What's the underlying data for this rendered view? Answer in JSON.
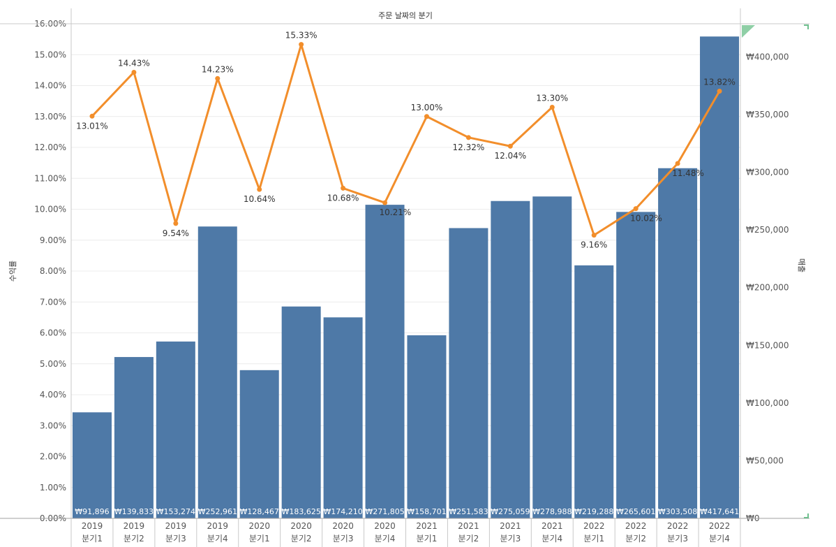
{
  "chart_data": {
    "type": "bar+line",
    "title": "주문 날짜의 분기",
    "y_left_label": "수익률",
    "y_right_label": "매출",
    "y_left_ticks": [
      "0.00%",
      "1.00%",
      "2.00%",
      "3.00%",
      "4.00%",
      "5.00%",
      "6.00%",
      "7.00%",
      "8.00%",
      "9.00%",
      "10.00%",
      "11.00%",
      "12.00%",
      "13.00%",
      "14.00%",
      "15.00%",
      "16.00%"
    ],
    "y_right_ticks": [
      "₩0",
      "₩50,000",
      "₩100,000",
      "₩150,000",
      "₩200,000",
      "₩250,000",
      "₩300,000",
      "₩350,000",
      "₩400,000"
    ],
    "ylim_left": [
      0,
      16
    ],
    "ylim_right": [
      0,
      428700
    ],
    "categories": [
      {
        "year": "2019",
        "quarter": "분기1"
      },
      {
        "year": "2019",
        "quarter": "분기2"
      },
      {
        "year": "2019",
        "quarter": "분기3"
      },
      {
        "year": "2019",
        "quarter": "분기4"
      },
      {
        "year": "2020",
        "quarter": "분기1"
      },
      {
        "year": "2020",
        "quarter": "분기2"
      },
      {
        "year": "2020",
        "quarter": "분기3"
      },
      {
        "year": "2020",
        "quarter": "분기4"
      },
      {
        "year": "2021",
        "quarter": "분기1"
      },
      {
        "year": "2021",
        "quarter": "분기2"
      },
      {
        "year": "2021",
        "quarter": "분기3"
      },
      {
        "year": "2021",
        "quarter": "분기4"
      },
      {
        "year": "2022",
        "quarter": "분기1"
      },
      {
        "year": "2022",
        "quarter": "분기2"
      },
      {
        "year": "2022",
        "quarter": "분기3"
      },
      {
        "year": "2022",
        "quarter": "분기4"
      }
    ],
    "sales": [
      91896,
      139833,
      153274,
      252961,
      128467,
      183625,
      174210,
      271805,
      158701,
      251583,
      275059,
      278988,
      219288,
      265601,
      303508,
      417641
    ],
    "sales_labels": [
      "₩91,896",
      "₩139,833",
      "₩153,274",
      "₩252,961",
      "₩128,467",
      "₩183,625",
      "₩174,210",
      "₩271,805",
      "₩158,701",
      "₩251,583",
      "₩275,059",
      "₩278,988",
      "₩219,288",
      "₩265,601",
      "₩303,508",
      "₩417,641"
    ],
    "profit_rate": [
      13.01,
      14.43,
      9.54,
      14.23,
      10.64,
      15.33,
      10.68,
      10.21,
      13.0,
      12.32,
      12.04,
      13.3,
      9.16,
      10.02,
      11.48,
      13.82
    ],
    "profit_labels": [
      "13.01%",
      "14.43%",
      "9.54%",
      "14.23%",
      "10.64%",
      "15.33%",
      "10.68%",
      "10.21%",
      "13.00%",
      "12.32%",
      "12.04%",
      "13.30%",
      "9.16%",
      "10.02%",
      "11.48%",
      "13.82%"
    ],
    "colors": {
      "bar": "#4e79a7",
      "line": "#f28e2b",
      "grid": "#ececec",
      "axis": "#c8c8c8"
    }
  }
}
